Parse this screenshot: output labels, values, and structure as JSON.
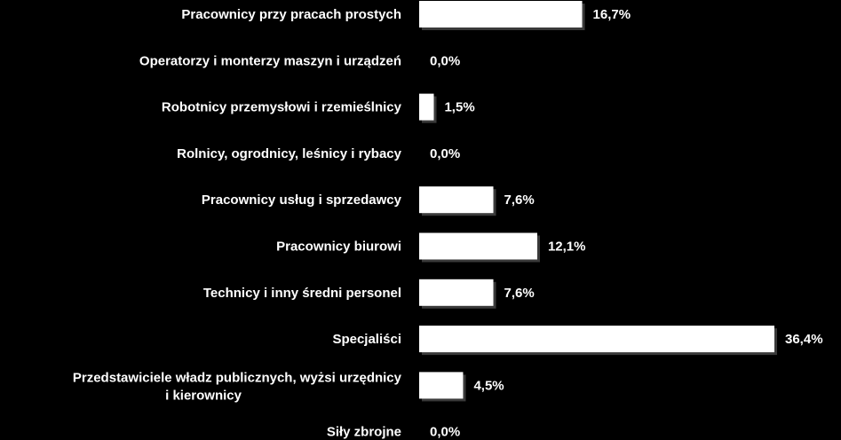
{
  "chart_data": {
    "type": "bar",
    "orientation": "horizontal",
    "categories": [
      "Pracownicy przy pracach prostych",
      "Operatorzy i monterzy maszyn  i urządzeń",
      "Robotnicy przemysłowi i rzemieślnicy",
      "Rolnicy, ogrodnicy, leśnicy i rybacy",
      "Pracownicy usług i sprzedawcy",
      "Pracownicy biurowi",
      "Technicy i inny średni personel",
      "Specjaliści",
      "Przedstawiciele władz publicznych, wyżsi urzędnicy i kierownicy",
      "Siły zbrojne"
    ],
    "values": [
      16.7,
      0.0,
      1.5,
      0.0,
      7.6,
      12.1,
      7.6,
      36.4,
      4.5,
      0.0
    ],
    "value_labels": [
      "16,7%",
      "0,0%",
      "1,5%",
      "0,0%",
      "7,6%",
      "12,1%",
      "7,6%",
      "36,4%",
      "4,5%",
      "0,0%"
    ],
    "xlim": [
      0,
      36.4
    ],
    "grid": false,
    "legend": "none",
    "bar_color": "#ffffff",
    "background_color": "#000000",
    "text_color": "#ffffff"
  }
}
